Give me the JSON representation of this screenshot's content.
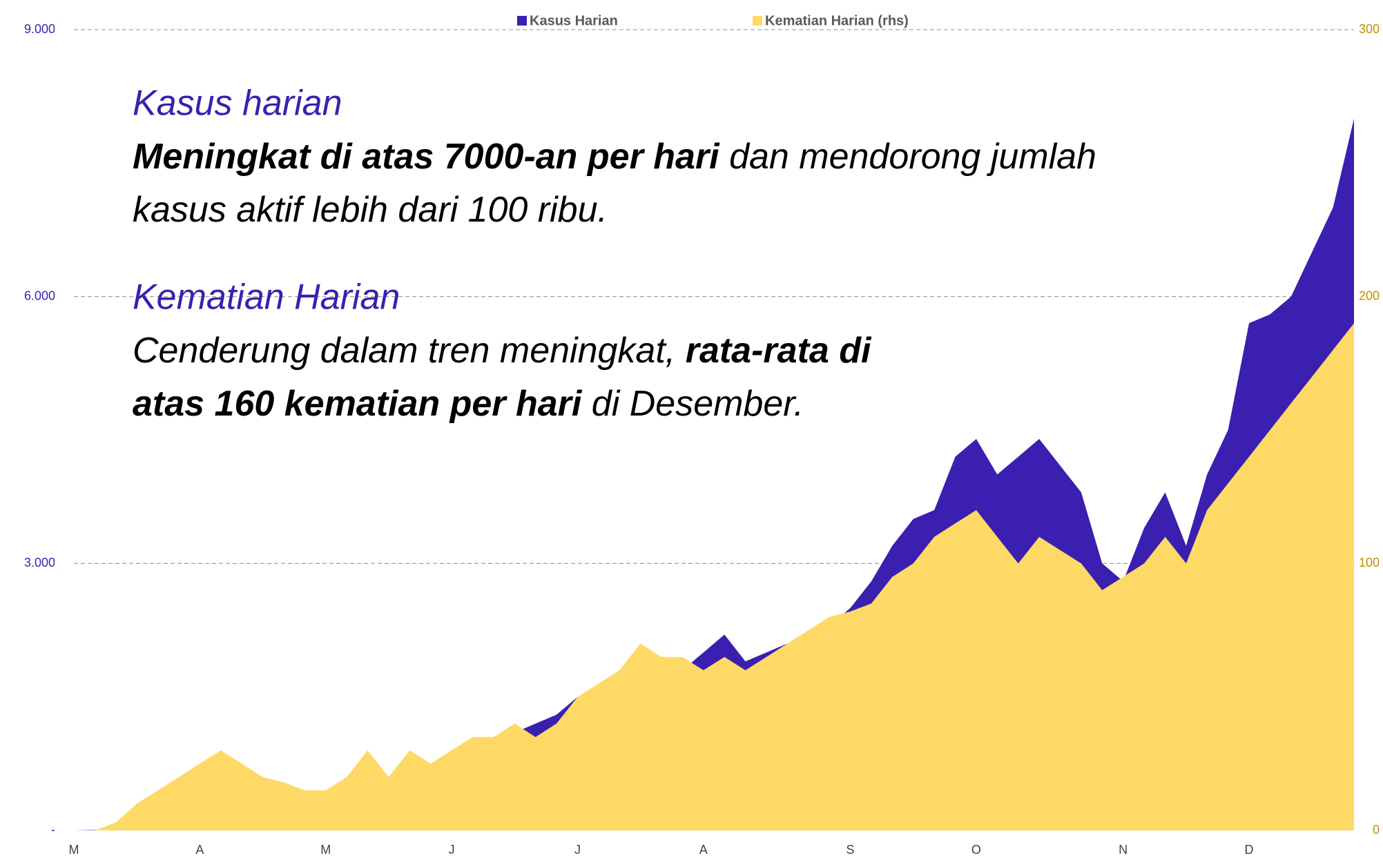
{
  "chart_data": {
    "type": "area",
    "legend": "top",
    "grid": true,
    "categories": [
      "M",
      null,
      null,
      null,
      null,
      null,
      "A",
      null,
      null,
      null,
      null,
      null,
      "M",
      null,
      null,
      null,
      null,
      null,
      "J",
      null,
      null,
      null,
      null,
      null,
      "J",
      null,
      null,
      null,
      null,
      null,
      "A",
      null,
      null,
      null,
      null,
      null,
      null,
      "S",
      null,
      null,
      null,
      null,
      null,
      "O",
      null,
      null,
      null,
      null,
      null,
      null,
      "N",
      null,
      null,
      null,
      null,
      null,
      "D",
      null,
      null,
      null,
      null,
      null
    ],
    "series": [
      {
        "name": "Kasus Harian",
        "color": "#3b1fb0",
        "axis": "y",
        "values": [
          0,
          5,
          20,
          100,
          120,
          150,
          200,
          300,
          350,
          330,
          300,
          350,
          400,
          450,
          500,
          600,
          700,
          650,
          600,
          900,
          1000,
          1100,
          1200,
          1300,
          1500,
          1600,
          1800,
          1700,
          1600,
          1800,
          2000,
          2200,
          1900,
          2000,
          2100,
          2200,
          2300,
          2500,
          2800,
          3200,
          3500,
          3600,
          4200,
          4400,
          4000,
          4200,
          4400,
          4100,
          3800,
          3000,
          2800,
          3400,
          3800,
          3200,
          4000,
          4500,
          5700,
          5800,
          6000,
          6500,
          7000,
          8000
        ]
      },
      {
        "name": "Kematian Harian (rhs)",
        "color": "#ffd966",
        "axis": "y2",
        "values": [
          0,
          0,
          3,
          10,
          15,
          20,
          25,
          30,
          25,
          20,
          18,
          15,
          15,
          20,
          30,
          20,
          30,
          25,
          30,
          35,
          35,
          40,
          35,
          40,
          50,
          55,
          60,
          70,
          65,
          65,
          60,
          65,
          60,
          65,
          70,
          75,
          80,
          82,
          85,
          95,
          100,
          110,
          115,
          120,
          110,
          100,
          110,
          105,
          100,
          90,
          95,
          100,
          110,
          100,
          120,
          130,
          140,
          150,
          160,
          170,
          180,
          190
        ]
      }
    ],
    "ylim": [
      0,
      9000
    ],
    "yticks": [
      {
        "value": 0,
        "label": "-"
      },
      {
        "value": 3000,
        "label": "3.000"
      },
      {
        "value": 6000,
        "label": "6.000"
      },
      {
        "value": 9000,
        "label": "9.000"
      }
    ],
    "y2lim": [
      0,
      300
    ],
    "y2ticks": [
      0,
      100,
      200,
      300
    ],
    "annotations": [
      {
        "heading": "Kasus harian",
        "lines": [
          [
            {
              "text": "Meningkat di atas 7000-an per hari",
              "bold": true
            },
            {
              "text": " dan mendorong jumlah",
              "bold": false
            }
          ],
          [
            {
              "text": "kasus aktif lebih dari 100 ribu.",
              "bold": false
            }
          ]
        ]
      },
      {
        "heading": "Kematian Harian",
        "lines": [
          [
            {
              "text": "Cenderung dalam tren meningkat, ",
              "bold": false
            },
            {
              "text": "rata-rata di",
              "bold": true
            }
          ],
          [
            {
              "text": "atas 160 kematian per hari",
              "bold": true
            },
            {
              "text": " di Desember.",
              "bold": false
            }
          ]
        ]
      }
    ]
  }
}
